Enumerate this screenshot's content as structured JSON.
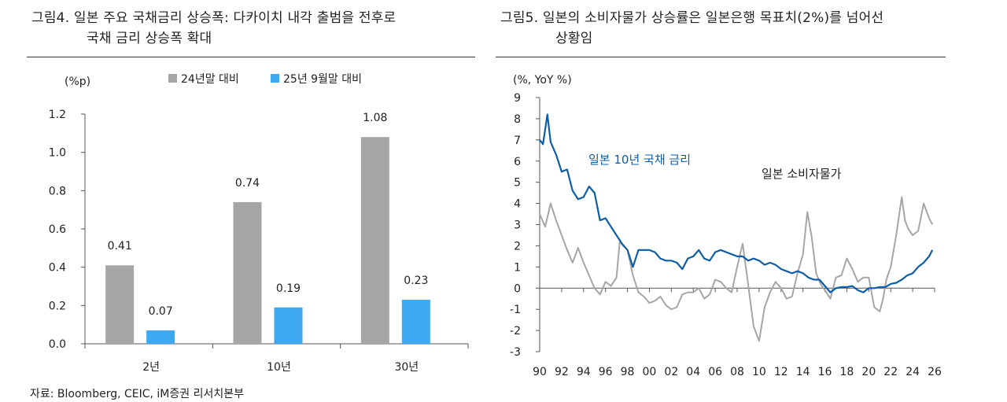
{
  "figure4": {
    "title_line1": "그림4.  일본 주요 국채금리 상승폭: 다카이치 내각 출범을 전후로",
    "title_line2": "국채 금리 상승폭 확대"
  },
  "figure5": {
    "title_line1": "그림5.  일본의 소비자물가 상승률은 일본은행 목표치(2%)를 넘어선",
    "title_line2": "상황임"
  },
  "source": "자료: Bloomberg, CEIC, iM증권 리서치본부",
  "colors": {
    "gray": "#a6a6a6",
    "blue": "#3ea8f0",
    "navy": "#0e5ea6",
    "axis": "#555555"
  },
  "chart_data": [
    {
      "type": "bar",
      "unit_label": "(%p)",
      "categories": [
        "2년",
        "10년",
        "30년"
      ],
      "series": [
        {
          "name": "24년말 대비",
          "values": [
            0.41,
            0.74,
            1.08
          ],
          "labels": [
            "0.41",
            "0.74",
            "1.08"
          ]
        },
        {
          "name": "25년 9월말 대비",
          "values": [
            0.07,
            0.19,
            0.23
          ],
          "labels": [
            "0.07",
            "0.19",
            "0.23"
          ]
        }
      ],
      "ylim": [
        0,
        1.2
      ],
      "yticks": [
        "0.0",
        "0.2",
        "0.4",
        "0.6",
        "0.8",
        "1.0",
        "1.2"
      ],
      "legend_position": "top"
    },
    {
      "type": "line",
      "unit_label": "(%, YoY %)",
      "xlim": [
        1990,
        2026
      ],
      "ylim": [
        -3,
        9
      ],
      "yticks": [
        "-3",
        "-2",
        "-1",
        "0",
        "1",
        "2",
        "3",
        "4",
        "5",
        "6",
        "7",
        "8",
        "9"
      ],
      "xticks": [
        "90",
        "92",
        "94",
        "96",
        "98",
        "00",
        "02",
        "04",
        "06",
        "08",
        "10",
        "12",
        "14",
        "16",
        "18",
        "20",
        "22",
        "24",
        "26"
      ],
      "series": [
        {
          "name": "일본 10년 국채 금리",
          "x": [
            1990.0,
            1990.3,
            1990.7,
            1991.0,
            1991.5,
            1992.0,
            1992.5,
            1993.0,
            1993.5,
            1994.0,
            1994.5,
            1995.0,
            1995.5,
            1996.0,
            1996.5,
            1997.0,
            1997.5,
            1998.0,
            1998.5,
            1999.0,
            1999.5,
            2000.0,
            2000.5,
            2001.0,
            2001.5,
            2002.0,
            2002.5,
            2003.0,
            2003.5,
            2004.0,
            2004.5,
            2005.0,
            2005.5,
            2006.0,
            2006.5,
            2007.0,
            2007.5,
            2008.0,
            2008.5,
            2009.0,
            2009.5,
            2010.0,
            2010.5,
            2011.0,
            2011.5,
            2012.0,
            2012.5,
            2013.0,
            2013.5,
            2014.0,
            2014.5,
            2015.0,
            2015.5,
            2016.0,
            2016.5,
            2017.0,
            2017.5,
            2018.0,
            2018.5,
            2019.0,
            2019.5,
            2020.0,
            2020.5,
            2021.0,
            2021.5,
            2022.0,
            2022.5,
            2023.0,
            2023.5,
            2024.0,
            2024.5,
            2025.0,
            2025.5,
            2025.8
          ],
          "values": [
            7.0,
            6.8,
            8.2,
            6.9,
            6.3,
            5.5,
            5.6,
            4.6,
            4.2,
            4.3,
            4.8,
            4.5,
            3.2,
            3.3,
            2.9,
            2.5,
            2.1,
            1.8,
            1.0,
            1.8,
            1.8,
            1.8,
            1.7,
            1.4,
            1.3,
            1.3,
            1.2,
            0.9,
            1.4,
            1.5,
            1.8,
            1.4,
            1.3,
            1.7,
            1.8,
            1.7,
            1.6,
            1.5,
            1.5,
            1.3,
            1.4,
            1.3,
            1.1,
            1.2,
            1.1,
            0.9,
            0.8,
            0.7,
            0.8,
            0.7,
            0.5,
            0.4,
            0.4,
            0.1,
            -0.2,
            0.0,
            0.05,
            0.05,
            0.1,
            -0.1,
            -0.2,
            0.0,
            0.0,
            0.05,
            0.05,
            0.2,
            0.25,
            0.4,
            0.6,
            0.7,
            1.0,
            1.2,
            1.5,
            1.8
          ]
        },
        {
          "name": "일본 소비자물가",
          "x": [
            1990.0,
            1990.5,
            1991.0,
            1991.5,
            1992.0,
            1992.5,
            1993.0,
            1993.5,
            1994.0,
            1994.5,
            1995.0,
            1995.5,
            1996.0,
            1996.5,
            1997.0,
            1997.3,
            1997.6,
            1998.0,
            1998.5,
            1999.0,
            1999.5,
            2000.0,
            2000.5,
            2001.0,
            2001.5,
            2002.0,
            2002.5,
            2003.0,
            2003.5,
            2004.0,
            2004.5,
            2005.0,
            2005.5,
            2006.0,
            2006.5,
            2007.0,
            2007.5,
            2008.0,
            2008.5,
            2009.0,
            2009.5,
            2010.0,
            2010.5,
            2011.0,
            2011.5,
            2012.0,
            2012.5,
            2013.0,
            2013.5,
            2014.0,
            2014.4,
            2014.8,
            2015.2,
            2015.6,
            2016.0,
            2016.5,
            2017.0,
            2017.5,
            2018.0,
            2018.5,
            2019.0,
            2019.5,
            2020.0,
            2020.5,
            2021.0,
            2021.3,
            2021.6,
            2022.0,
            2022.5,
            2023.0,
            2023.3,
            2023.6,
            2024.0,
            2024.5,
            2025.0,
            2025.5,
            2025.8
          ],
          "values": [
            3.5,
            2.9,
            4.0,
            3.2,
            2.5,
            1.8,
            1.2,
            1.9,
            1.2,
            0.6,
            0.0,
            -0.3,
            0.3,
            0.1,
            0.5,
            2.2,
            2.0,
            1.8,
            0.6,
            -0.2,
            -0.4,
            -0.7,
            -0.6,
            -0.4,
            -0.8,
            -1.0,
            -0.9,
            -0.3,
            -0.2,
            -0.2,
            0.0,
            -0.5,
            -0.3,
            0.4,
            0.3,
            0.0,
            -0.2,
            1.0,
            2.1,
            0.2,
            -1.8,
            -2.5,
            -0.9,
            -0.2,
            0.3,
            0.0,
            -0.5,
            -0.4,
            0.7,
            1.6,
            3.6,
            2.4,
            0.7,
            0.2,
            -0.1,
            -0.5,
            0.5,
            0.6,
            1.4,
            0.9,
            0.3,
            0.5,
            0.5,
            -0.9,
            -1.1,
            -0.5,
            0.4,
            1.0,
            2.5,
            4.3,
            3.2,
            2.8,
            2.5,
            2.7,
            4.0,
            3.3,
            3.0
          ]
        }
      ],
      "annotations": [
        "일본 10년 국채 금리",
        "일본 소비자물가"
      ]
    }
  ]
}
